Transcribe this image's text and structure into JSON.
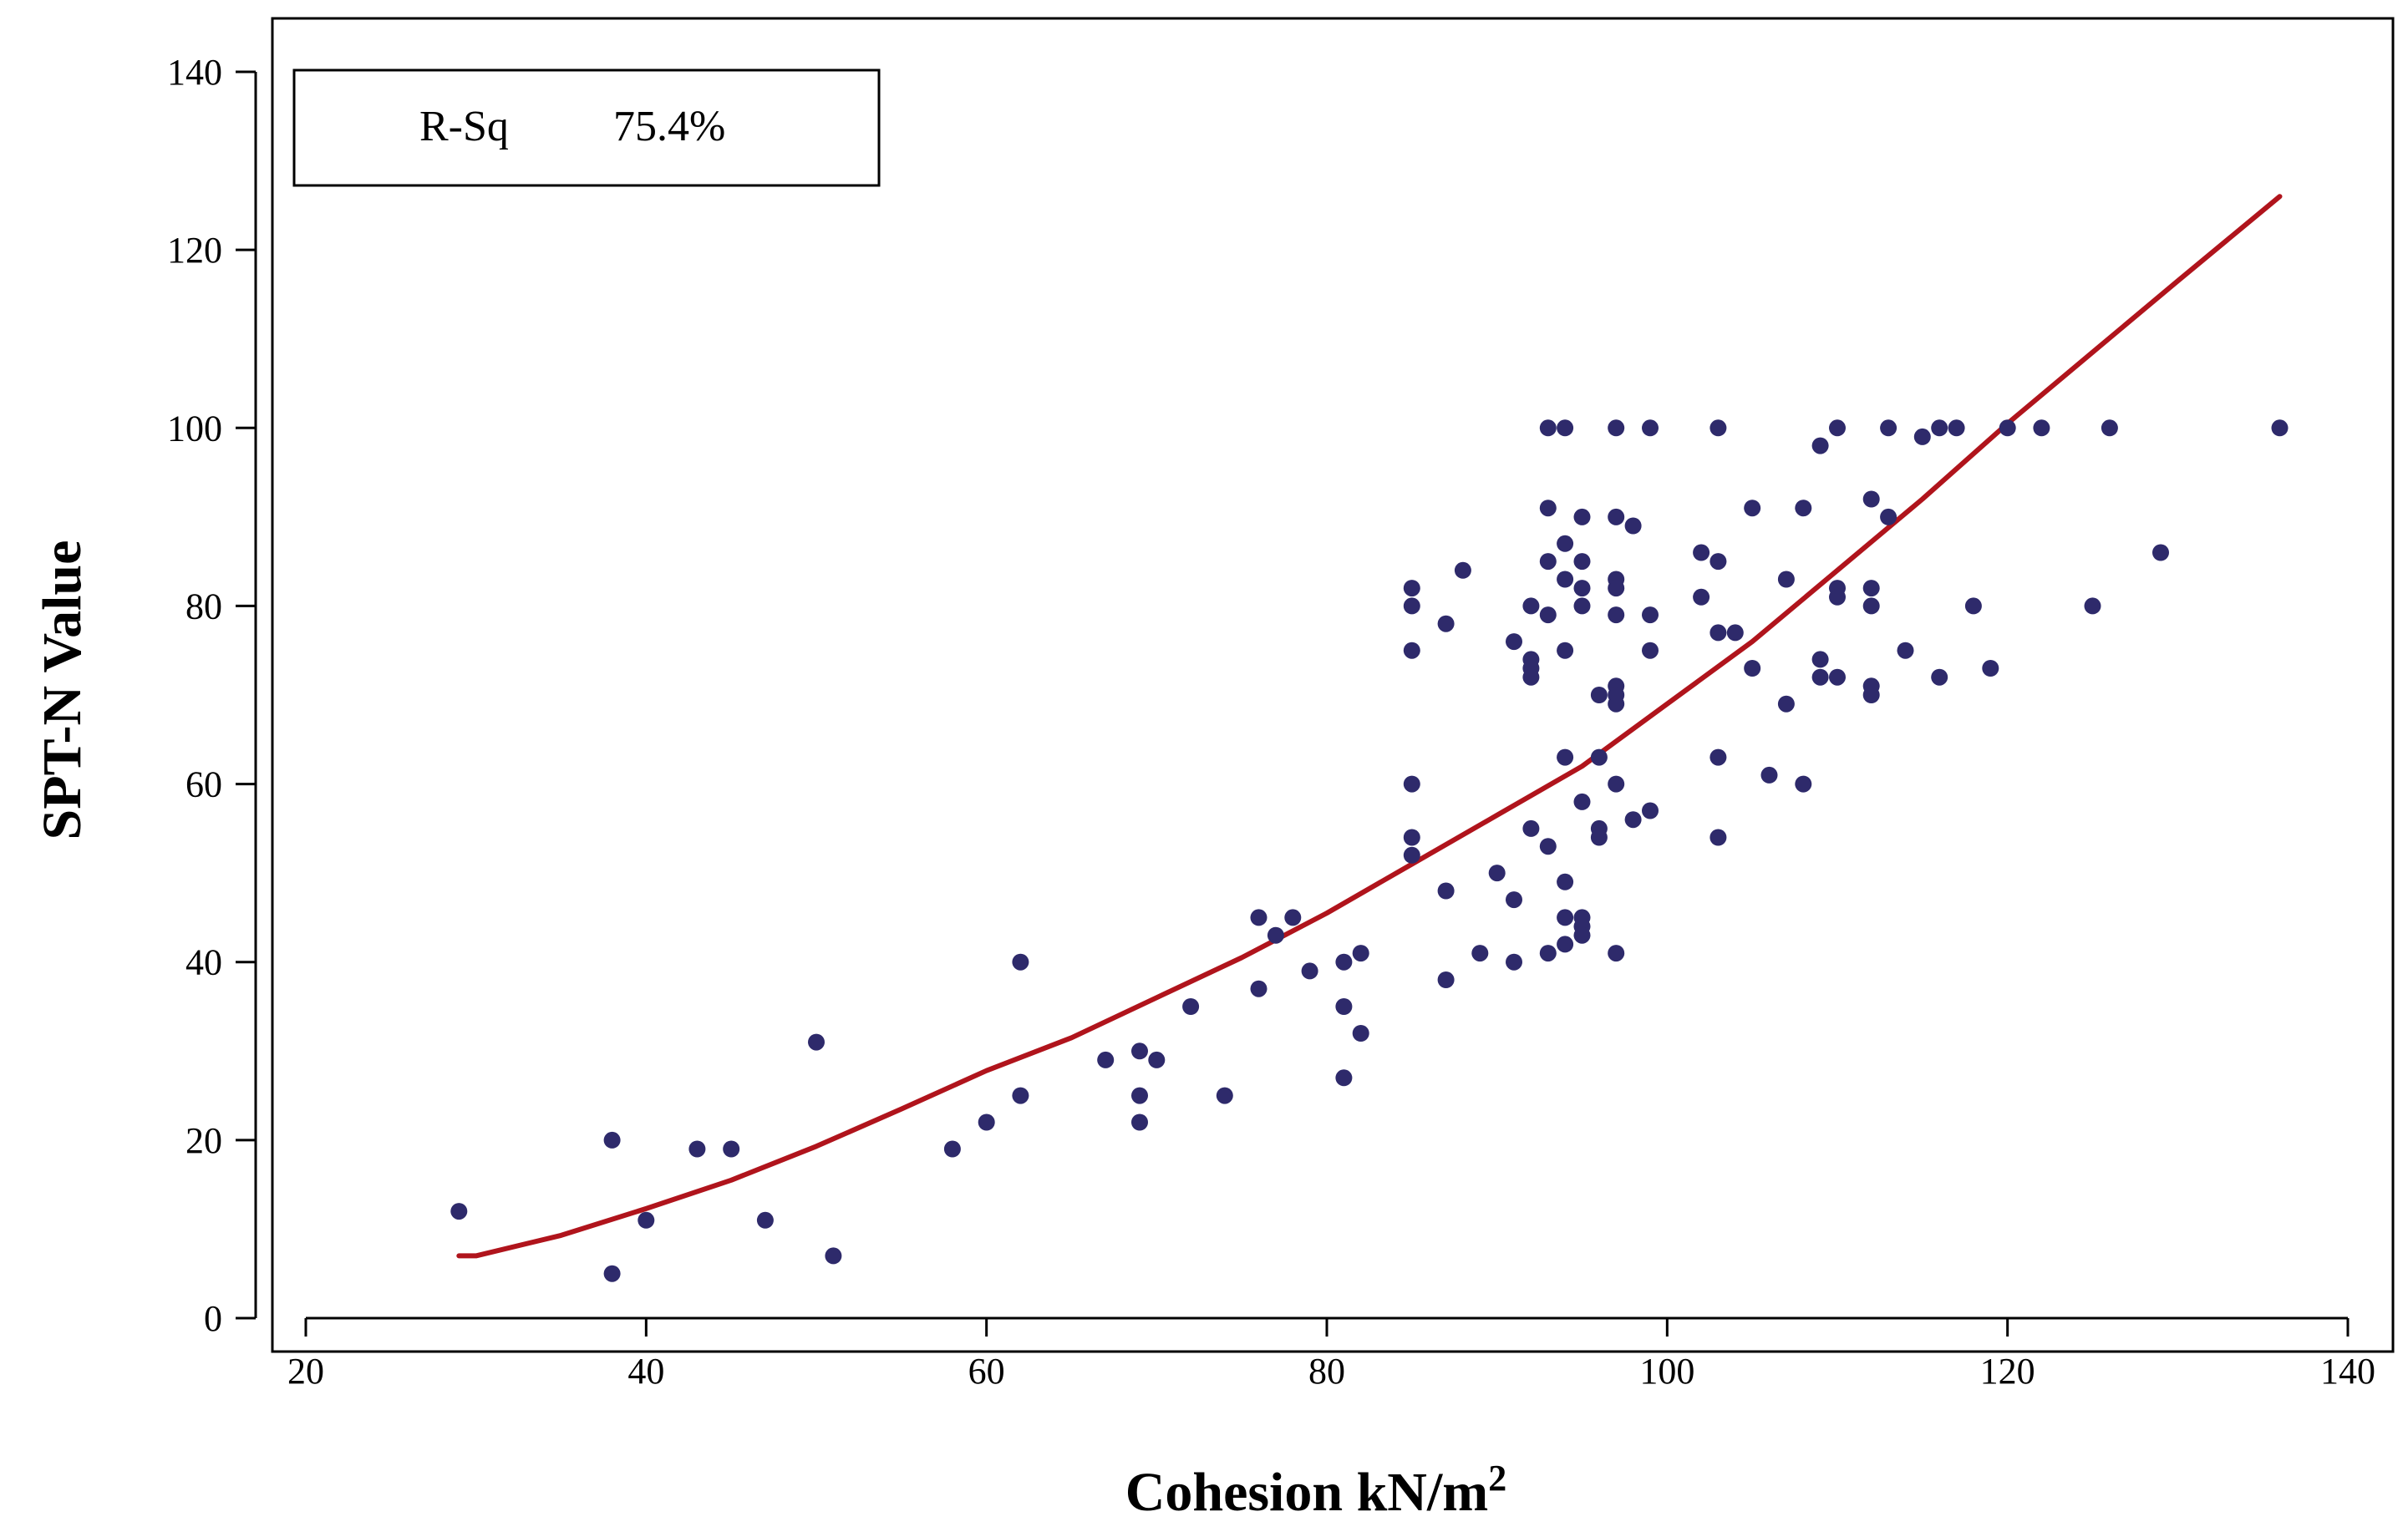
{
  "chart_data": {
    "type": "scatter",
    "title": "",
    "xlabel": "Cohesion  kN/m",
    "xlabel_superscript": "2",
    "ylabel": "SPT-N Value",
    "xlim": [
      20,
      140
    ],
    "ylim": [
      0,
      140
    ],
    "xticks": [
      20,
      40,
      60,
      80,
      100,
      120,
      140
    ],
    "yticks": [
      0,
      20,
      40,
      60,
      80,
      100,
      120,
      140
    ],
    "legend": {
      "label": "R-Sq",
      "value": "75.4%",
      "position": "top-left"
    },
    "colors": {
      "points": "#2e2a6b",
      "fit": "#b0141c",
      "axis": "#000000"
    },
    "series": [
      {
        "name": "observations",
        "kind": "scatter",
        "points": [
          [
            29,
            12
          ],
          [
            38,
            20
          ],
          [
            38,
            5
          ],
          [
            40,
            11
          ],
          [
            43,
            19
          ],
          [
            45,
            19
          ],
          [
            47,
            11
          ],
          [
            50,
            31
          ],
          [
            51,
            7
          ],
          [
            58,
            19
          ],
          [
            60,
            22
          ],
          [
            62,
            40
          ],
          [
            62,
            25
          ],
          [
            67,
            29
          ],
          [
            69,
            30
          ],
          [
            69,
            25
          ],
          [
            69,
            22
          ],
          [
            70,
            29
          ],
          [
            72,
            35
          ],
          [
            74,
            25
          ],
          [
            76,
            45
          ],
          [
            76,
            37
          ],
          [
            77,
            43
          ],
          [
            78,
            45
          ],
          [
            79,
            39
          ],
          [
            81,
            40
          ],
          [
            81,
            35
          ],
          [
            81,
            27
          ],
          [
            82,
            41
          ],
          [
            82,
            32
          ],
          [
            85,
            82
          ],
          [
            85,
            80
          ],
          [
            85,
            75
          ],
          [
            85,
            60
          ],
          [
            85,
            54
          ],
          [
            85,
            52
          ],
          [
            87,
            78
          ],
          [
            87,
            48
          ],
          [
            87,
            38
          ],
          [
            88,
            84
          ],
          [
            89,
            41
          ],
          [
            90,
            50
          ],
          [
            91,
            76
          ],
          [
            91,
            47
          ],
          [
            91,
            40
          ],
          [
            92,
            80
          ],
          [
            92,
            74
          ],
          [
            92,
            73
          ],
          [
            92,
            72
          ],
          [
            92,
            55
          ],
          [
            93,
            100
          ],
          [
            93,
            91
          ],
          [
            93,
            85
          ],
          [
            93,
            79
          ],
          [
            93,
            53
          ],
          [
            93,
            41
          ],
          [
            94,
            100
          ],
          [
            94,
            87
          ],
          [
            94,
            83
          ],
          [
            94,
            75
          ],
          [
            94,
            63
          ],
          [
            94,
            49
          ],
          [
            94,
            45
          ],
          [
            94,
            42
          ],
          [
            95,
            90
          ],
          [
            95,
            85
          ],
          [
            95,
            82
          ],
          [
            95,
            80
          ],
          [
            95,
            58
          ],
          [
            95,
            45
          ],
          [
            95,
            44
          ],
          [
            95,
            43
          ],
          [
            96,
            70
          ],
          [
            96,
            63
          ],
          [
            96,
            55
          ],
          [
            96,
            54
          ],
          [
            97,
            100
          ],
          [
            97,
            90
          ],
          [
            97,
            83
          ],
          [
            97,
            82
          ],
          [
            97,
            79
          ],
          [
            97,
            71
          ],
          [
            97,
            70
          ],
          [
            97,
            69
          ],
          [
            97,
            60
          ],
          [
            97,
            41
          ],
          [
            98,
            89
          ],
          [
            98,
            56
          ],
          [
            99,
            100
          ],
          [
            99,
            79
          ],
          [
            99,
            75
          ],
          [
            99,
            57
          ],
          [
            102,
            86
          ],
          [
            102,
            81
          ],
          [
            103,
            100
          ],
          [
            103,
            85
          ],
          [
            103,
            77
          ],
          [
            103,
            63
          ],
          [
            103,
            54
          ],
          [
            104,
            77
          ],
          [
            105,
            91
          ],
          [
            105,
            73
          ],
          [
            106,
            61
          ],
          [
            107,
            83
          ],
          [
            107,
            69
          ],
          [
            108,
            91
          ],
          [
            108,
            60
          ],
          [
            109,
            98
          ],
          [
            109,
            74
          ],
          [
            109,
            72
          ],
          [
            110,
            100
          ],
          [
            110,
            82
          ],
          [
            110,
            81
          ],
          [
            110,
            72
          ],
          [
            112,
            92
          ],
          [
            112,
            82
          ],
          [
            112,
            80
          ],
          [
            112,
            71
          ],
          [
            112,
            70
          ],
          [
            113,
            100
          ],
          [
            113,
            90
          ],
          [
            114,
            75
          ],
          [
            115,
            99
          ],
          [
            116,
            100
          ],
          [
            116,
            72
          ],
          [
            117,
            100
          ],
          [
            118,
            80
          ],
          [
            119,
            73
          ],
          [
            120,
            100
          ],
          [
            122,
            100
          ],
          [
            125,
            80
          ],
          [
            126,
            100
          ],
          [
            129,
            86
          ],
          [
            136,
            100
          ]
        ]
      },
      {
        "name": "fitted",
        "kind": "line",
        "points": [
          [
            29,
            7
          ],
          [
            30,
            7
          ],
          [
            35,
            9.3
          ],
          [
            40,
            12.3
          ],
          [
            45,
            15.5
          ],
          [
            50,
            19.3
          ],
          [
            55,
            23.5
          ],
          [
            60,
            27.8
          ],
          [
            65,
            31.5
          ],
          [
            70,
            36
          ],
          [
            75,
            40.5
          ],
          [
            80,
            45.5
          ],
          [
            85,
            51
          ],
          [
            90,
            56.5
          ],
          [
            95,
            62
          ],
          [
            100,
            69
          ],
          [
            105,
            76
          ],
          [
            110,
            84
          ],
          [
            115,
            92
          ],
          [
            120,
            100.5
          ],
          [
            125,
            108.5
          ],
          [
            130,
            116.5
          ],
          [
            136,
            126
          ]
        ]
      }
    ]
  }
}
